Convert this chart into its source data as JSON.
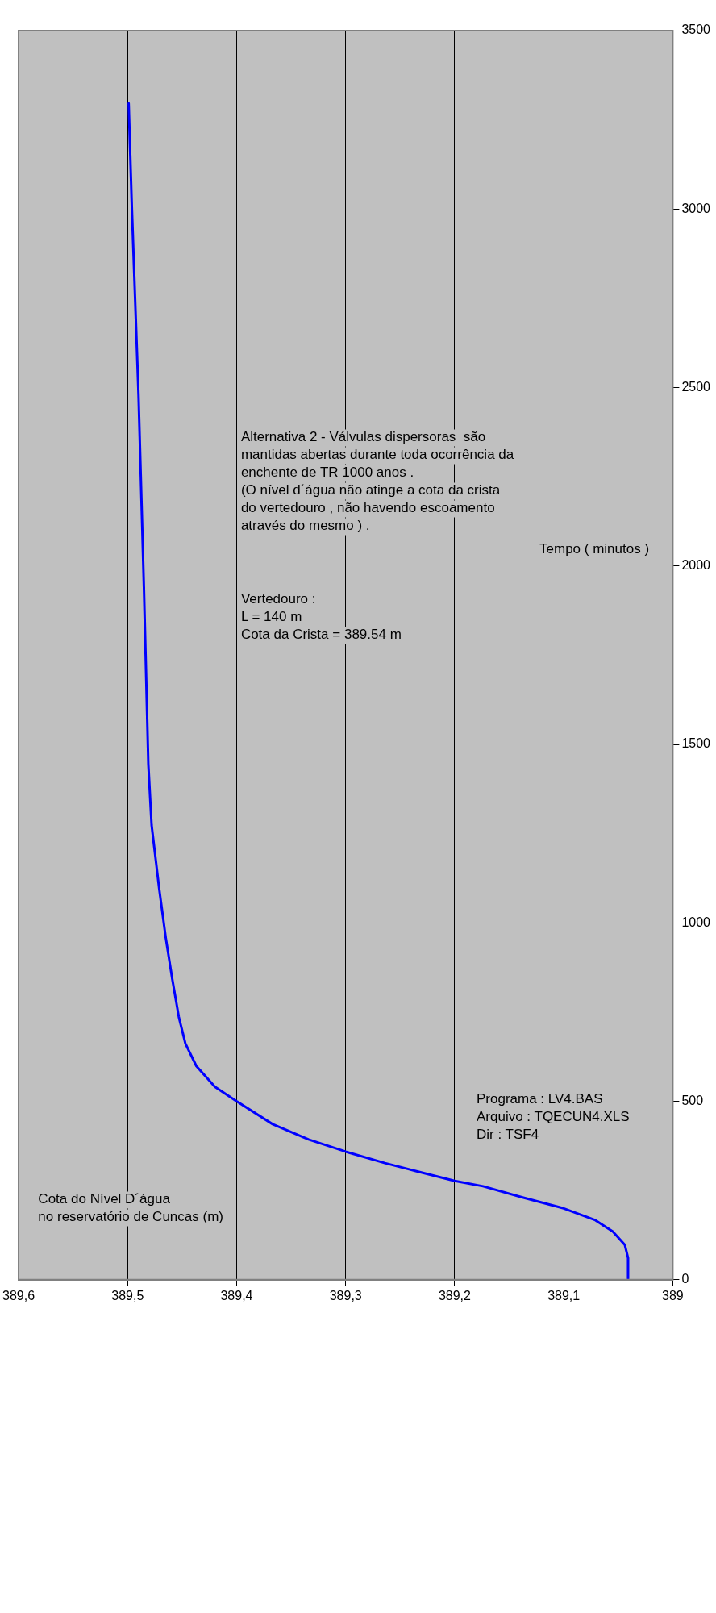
{
  "chart_data": {
    "type": "line",
    "title": "Cota do Nível D´água\nno reservatório de Cuncas (m)",
    "ylabel": "Tempo ( minutos )",
    "x": [
      389.041,
      389.041,
      389.044,
      389.055,
      389.071,
      389.1,
      389.137,
      389.174,
      389.2,
      389.235,
      389.264,
      389.3,
      389.334,
      389.367,
      389.4,
      389.42,
      389.437,
      389.447,
      389.453,
      389.459,
      389.465,
      389.471,
      389.478,
      389.481,
      389.485,
      389.49,
      389.496,
      389.499
    ],
    "series": [
      {
        "color": "#0000ff",
        "values": [
          3,
          61,
          98,
          135,
          167,
          200,
          230,
          262,
          277,
          304,
          327,
          359,
          393,
          436,
          500,
          541,
          599,
          662,
          736,
          842,
          958,
          1095,
          1274,
          1445,
          1935,
          2480,
          2997,
          3296
        ]
      }
    ],
    "xlim": [
      389.6,
      389
    ],
    "xticks": [
      {
        "value": 389.6,
        "label": "389,6"
      },
      {
        "value": 389.5,
        "label": "389,5"
      },
      {
        "value": 389.4,
        "label": "389,4"
      },
      {
        "value": 389.3,
        "label": "389,3"
      },
      {
        "value": 389.2,
        "label": "389,2"
      },
      {
        "value": 389.1,
        "label": "389,1"
      },
      {
        "value": 389,
        "label": "389"
      }
    ],
    "ylim": [
      0,
      3500
    ],
    "yticks": [
      0,
      500,
      1000,
      1500,
      2000,
      2500,
      3000,
      3500
    ],
    "grid": "x",
    "legend": false,
    "marker": "none",
    "line_style": "solid",
    "annotations": [
      "Programa : LV4.BAS\nArquivo : TQECUN4.XLS\nDir : TSF4",
      "Alternativa 2 - Válvulas dispersoras  são\nmantidas abertas durante toda ocorrência da\nenchente de TR 1000 anos .\n(O nível d´água não atinge a cota da crista\ndo vertedouro , não havendo escoamento\natravés do mesmo ) .",
      "Vertedouro :\nL = 140 m\nCota da Crista = 389.54 m"
    ]
  }
}
